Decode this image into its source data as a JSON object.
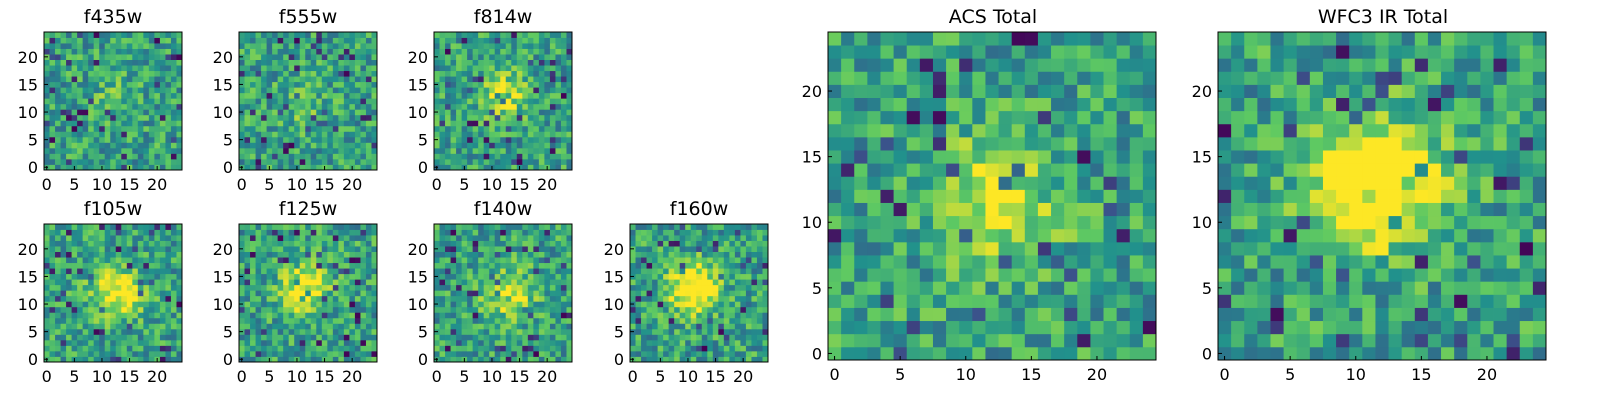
{
  "chart_data": [
    {
      "type": "heatmap",
      "title": "f435w",
      "xticks": [
        "0",
        "5",
        "10",
        "15",
        "20"
      ],
      "yticks": [
        "0",
        "5",
        "10",
        "15",
        "20"
      ],
      "xlim": [
        -0.5,
        24.5
      ],
      "ylim": [
        -0.5,
        24.5
      ],
      "grid_size": 25,
      "colormap": "viridis",
      "seed": 11,
      "source_peak": 0.08
    },
    {
      "type": "heatmap",
      "title": "f555w",
      "xticks": [
        "0",
        "5",
        "10",
        "15",
        "20"
      ],
      "yticks": [
        "0",
        "5",
        "10",
        "15",
        "20"
      ],
      "xlim": [
        -0.5,
        24.5
      ],
      "ylim": [
        -0.5,
        24.5
      ],
      "grid_size": 25,
      "colormap": "viridis",
      "seed": 23,
      "source_peak": 0.1
    },
    {
      "type": "heatmap",
      "title": "f814w",
      "xticks": [
        "0",
        "5",
        "10",
        "15",
        "20"
      ],
      "yticks": [
        "0",
        "5",
        "10",
        "15",
        "20"
      ],
      "xlim": [
        -0.5,
        24.5
      ],
      "ylim": [
        -0.5,
        24.5
      ],
      "grid_size": 25,
      "colormap": "viridis",
      "seed": 37,
      "source_peak": 0.25
    },
    {
      "type": "heatmap",
      "title": "f105w",
      "xticks": [
        "0",
        "5",
        "10",
        "15",
        "20"
      ],
      "yticks": [
        "0",
        "5",
        "10",
        "15",
        "20"
      ],
      "xlim": [
        -0.5,
        24.5
      ],
      "ylim": [
        -0.5,
        24.5
      ],
      "grid_size": 25,
      "colormap": "viridis",
      "seed": 41,
      "source_peak": 0.35
    },
    {
      "type": "heatmap",
      "title": "f125w",
      "xticks": [
        "0",
        "5",
        "10",
        "15",
        "20"
      ],
      "yticks": [
        "0",
        "5",
        "10",
        "15",
        "20"
      ],
      "xlim": [
        -0.5,
        24.5
      ],
      "ylim": [
        -0.5,
        24.5
      ],
      "grid_size": 25,
      "colormap": "viridis",
      "seed": 53,
      "source_peak": 0.35
    },
    {
      "type": "heatmap",
      "title": "f140w",
      "xticks": [
        "0",
        "5",
        "10",
        "15",
        "20"
      ],
      "yticks": [
        "0",
        "5",
        "10",
        "15",
        "20"
      ],
      "xlim": [
        -0.5,
        24.5
      ],
      "ylim": [
        -0.5,
        24.5
      ],
      "grid_size": 25,
      "colormap": "viridis",
      "seed": 67,
      "source_peak": 0.3
    },
    {
      "type": "heatmap",
      "title": "f160w",
      "xticks": [
        "0",
        "5",
        "10",
        "15",
        "20"
      ],
      "yticks": [
        "0",
        "5",
        "10",
        "15",
        "20"
      ],
      "xlim": [
        -0.5,
        24.5
      ],
      "ylim": [
        -0.5,
        24.5
      ],
      "grid_size": 25,
      "colormap": "viridis",
      "seed": 79,
      "source_peak": 0.45
    },
    {
      "type": "heatmap",
      "title": "ACS Total",
      "xticks": [
        "0",
        "5",
        "10",
        "15",
        "20"
      ],
      "yticks": [
        "0",
        "5",
        "10",
        "15",
        "20"
      ],
      "xlim": [
        -0.5,
        24.5
      ],
      "ylim": [
        -0.5,
        24.5
      ],
      "grid_size": 25,
      "colormap": "viridis",
      "seed": 97,
      "source_peak": 0.3
    },
    {
      "type": "heatmap",
      "title": "WFC3 IR Total",
      "xticks": [
        "0",
        "5",
        "10",
        "15",
        "20"
      ],
      "yticks": [
        "0",
        "5",
        "10",
        "15",
        "20"
      ],
      "xlim": [
        -0.5,
        24.5
      ],
      "ylim": [
        -0.5,
        24.5
      ],
      "grid_size": 25,
      "colormap": "viridis",
      "seed": 131,
      "source_peak": 0.55
    }
  ],
  "colors": {
    "viridis": [
      "#440154",
      "#3b528b",
      "#21918c",
      "#5ec962",
      "#fde725"
    ]
  }
}
